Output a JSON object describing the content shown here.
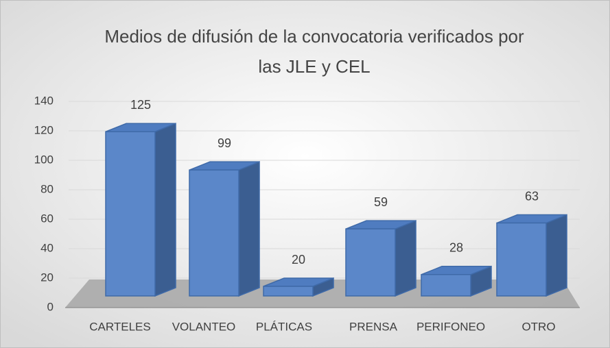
{
  "chart_data": {
    "type": "bar3d",
    "title": "Medios de difusión de la convocatoria verificados por las JLE y CEL",
    "title_lines": [
      "Medios de difusión de la convocatoria verificados por",
      "las JLE y CEL"
    ],
    "categories": [
      "CARTELES",
      "VOLANTEO",
      "PLÁTICAS",
      "PRENSA",
      "PERIFONEO",
      "OTRO"
    ],
    "values": [
      125,
      99,
      20,
      59,
      28,
      63
    ],
    "color": "#5b87c9",
    "ylim": [
      0,
      140
    ],
    "yticks": [
      0,
      20,
      40,
      60,
      80,
      100,
      120,
      140
    ],
    "grid": true
  }
}
